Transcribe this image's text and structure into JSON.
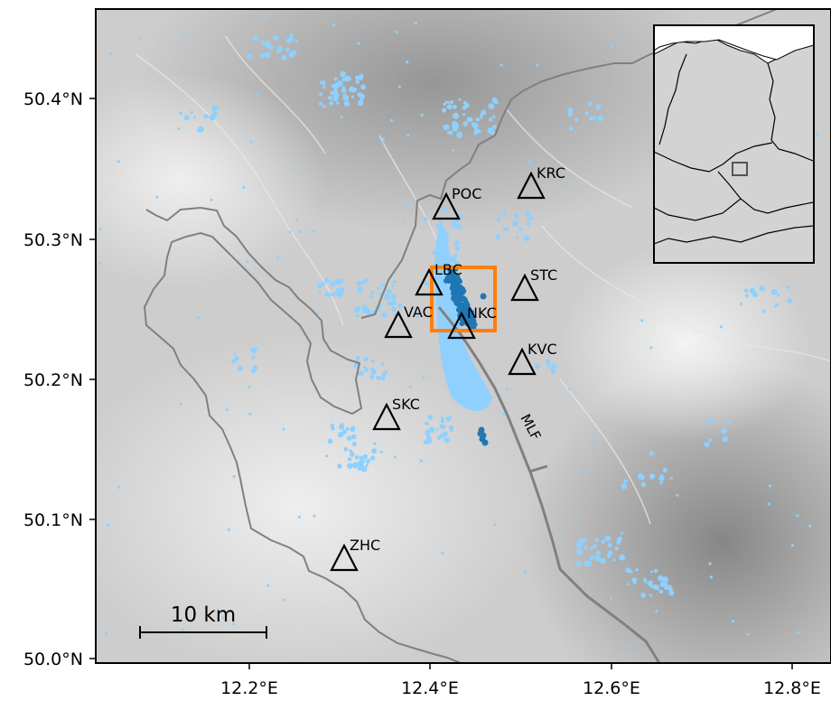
{
  "map": {
    "x_ticks": [
      "12.2°E",
      "12.4°E",
      "12.6°E",
      "12.8°E"
    ],
    "y_ticks": [
      "50.0°N",
      "50.1°N",
      "50.2°N",
      "50.3°N",
      "50.4°N"
    ],
    "stations": [
      {
        "code": "POC"
      },
      {
        "code": "KRC"
      },
      {
        "code": "LBC"
      },
      {
        "code": "STC"
      },
      {
        "code": "VAC"
      },
      {
        "code": "NKC"
      },
      {
        "code": "KVC"
      },
      {
        "code": "SKC"
      },
      {
        "code": "ZHC"
      }
    ],
    "fault_label": "MLF",
    "scale_bar_label": "10 km",
    "colors": {
      "background_relief": "#cfcfcf",
      "border": "#808080",
      "fault": "#808080",
      "seismicity_light": "#8fd0ff",
      "seismicity_dark": "#1f77b4",
      "focus_box": "#ff7f0e",
      "inset_land": "#d3d3d3"
    }
  }
}
